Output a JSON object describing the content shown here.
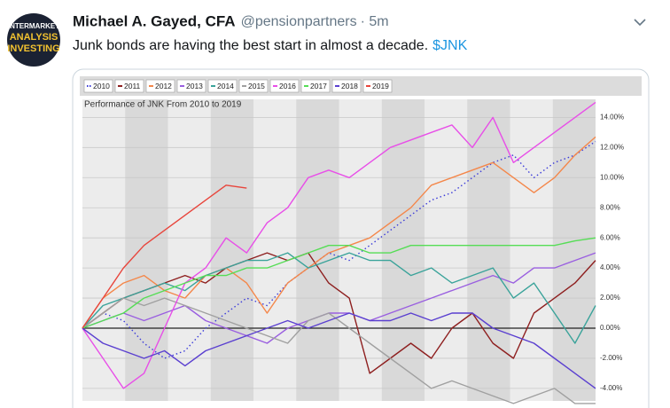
{
  "tweet": {
    "avatar_text": [
      "INTERMARKET",
      "ANALYSIS",
      "INVESTING"
    ],
    "name": "Michael A. Gayed, CFA",
    "handle": "@pensionpartners",
    "time": "· 5m",
    "text": "Junk bonds are having the best start in almost a decade.",
    "link": "$JNK"
  },
  "chart_data": {
    "type": "line",
    "title": "Performance of JNK From 2010 to 2019",
    "ylim": [
      -4.3,
      15.2
    ],
    "yticks": [
      {
        "value": -4,
        "label": "-4.00%"
      },
      {
        "value": -2,
        "label": "-2.00%"
      },
      {
        "value": 0,
        "label": "0.00%"
      },
      {
        "value": 2,
        "label": "2.00%"
      },
      {
        "value": 4,
        "label": "4.00%"
      },
      {
        "value": 6,
        "label": "6.00%"
      },
      {
        "value": 8,
        "label": "8.00%"
      },
      {
        "value": 10,
        "label": "10.00%"
      },
      {
        "value": 12,
        "label": "12.00%"
      },
      {
        "value": 14,
        "label": "14.00%"
      }
    ],
    "grid": true,
    "series": [
      {
        "name": "2010",
        "color": "#3b3bd9",
        "dotted": true,
        "values": [
          0,
          1,
          0.5,
          -1,
          -2,
          -1.5,
          0,
          1,
          2,
          1.5,
          3,
          4,
          5,
          4.5,
          5.5,
          6.5,
          7.5,
          8.5,
          9,
          10,
          11,
          11.5,
          10,
          11,
          11.5,
          12.4
        ]
      },
      {
        "name": "2011",
        "color": "#8e1f1f",
        "values": [
          0,
          1,
          2,
          2.5,
          3,
          3.5,
          3,
          4,
          4.5,
          5,
          4.5,
          5,
          3,
          2,
          -3,
          -2,
          -1,
          -2,
          0,
          1,
          -1,
          -2,
          1,
          2,
          3,
          4.5
        ]
      },
      {
        "name": "2012",
        "color": "#f4874a",
        "values": [
          0,
          2,
          3,
          3.5,
          2.5,
          2,
          3.5,
          4,
          3,
          1,
          3,
          4,
          5,
          5.5,
          6,
          7,
          8,
          9.5,
          10,
          10.5,
          11,
          10,
          9,
          10,
          11.5,
          12.7
        ]
      },
      {
        "name": "2013",
        "color": "#9a5fe0",
        "values": [
          0,
          0.5,
          1,
          0.5,
          1,
          1.5,
          0.5,
          0,
          -0.5,
          -1,
          0,
          0.5,
          1,
          1,
          0.5,
          1,
          1.5,
          2,
          2.5,
          3,
          3.5,
          3,
          4,
          4,
          4.5,
          5
        ]
      },
      {
        "name": "2014",
        "color": "#3aa39a",
        "values": [
          0,
          1.5,
          2,
          2.5,
          3,
          2.5,
          3.5,
          4,
          4.5,
          4.5,
          5,
          4,
          4.5,
          5,
          4.5,
          4.5,
          3.5,
          4,
          3,
          3.5,
          4,
          2,
          3,
          1,
          -1,
          1.5
        ]
      },
      {
        "name": "2015",
        "color": "#a0a0a0",
        "values": [
          0,
          1,
          2,
          1.5,
          2,
          1.5,
          1,
          0.5,
          0,
          -0.5,
          -1,
          0.5,
          1,
          0,
          -1,
          -2,
          -3,
          -4,
          -3.5,
          -4,
          -4.5,
          -5,
          -4.5,
          -4,
          -5,
          -5
        ]
      },
      {
        "name": "2016",
        "color": "#e84ee8",
        "values": [
          0,
          -2,
          -4,
          -3,
          0,
          3,
          4,
          6,
          5,
          7,
          8,
          10,
          10.5,
          10,
          11,
          12,
          12.5,
          13,
          13.5,
          12,
          14,
          11,
          12,
          13,
          14,
          15
        ]
      },
      {
        "name": "2017",
        "color": "#55dd55",
        "values": [
          0,
          0.5,
          1,
          2,
          2.5,
          3,
          3.5,
          3.5,
          4,
          4,
          4.5,
          5,
          5.5,
          5.5,
          5,
          5,
          5.5,
          5.5,
          5.5,
          5.5,
          5.5,
          5.5,
          5.5,
          5.5,
          5.8,
          6
        ]
      },
      {
        "name": "2018",
        "color": "#5a3fd0",
        "values": [
          0,
          -1,
          -1.5,
          -2,
          -1.5,
          -2.5,
          -1.5,
          -1,
          -0.5,
          0,
          0.5,
          0,
          0.5,
          1,
          0.5,
          0.5,
          1,
          0.5,
          1,
          1,
          0,
          -0.5,
          -1,
          -2,
          -3,
          -4
        ]
      },
      {
        "name": "2019",
        "color": "#e8453c",
        "values": [
          0,
          2,
          4,
          5.5,
          6.5,
          7.5,
          8.5,
          9.5,
          9.3
        ]
      }
    ]
  }
}
